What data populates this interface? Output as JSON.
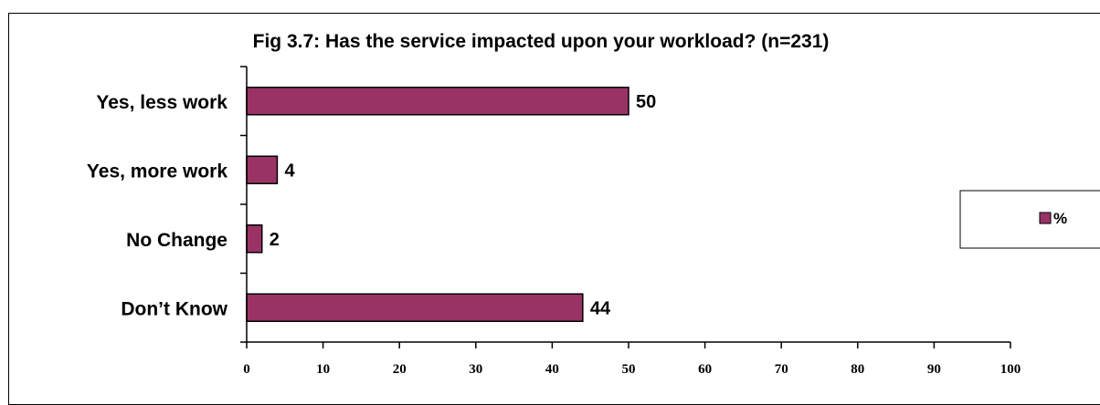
{
  "chart_data": {
    "type": "bar",
    "orientation": "horizontal",
    "title": "Fig 3.7: Has the service impacted upon your workload? (n=231)",
    "categories": [
      "Yes, less work",
      "Yes, more work",
      "No Change",
      "Don’t Know"
    ],
    "series": [
      {
        "name": "%",
        "values": [
          50,
          4,
          2,
          44
        ],
        "color": "#993366"
      }
    ],
    "xlim": [
      0,
      100
    ],
    "xticks": [
      "0",
      "10",
      "20",
      "30",
      "40",
      "50",
      "60",
      "70",
      "80",
      "90",
      "100"
    ],
    "grid": false,
    "legend": {
      "position": "right",
      "label": "%"
    }
  }
}
